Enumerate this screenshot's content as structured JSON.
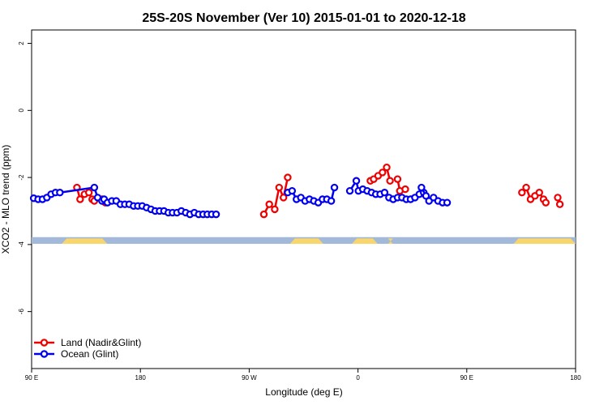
{
  "chart_data": {
    "type": "line",
    "title": "25S-20S November (Ver 10)   2015-01-01 to 2020-12-18",
    "xlabel": "Longitude (deg E)",
    "ylabel": "XCO2 - MLO trend (ppm)",
    "xlim": [
      90,
      450
    ],
    "ylim": [
      -7.7,
      2.4
    ],
    "x_ticks": [
      {
        "value": 90,
        "label": "90 E"
      },
      {
        "value": 162,
        "label": "180"
      },
      {
        "value": 234,
        "label": "90 W"
      },
      {
        "value": 306,
        "label": "0"
      },
      {
        "value": 378,
        "label": "90 E"
      },
      {
        "value": 450,
        "label": "180"
      }
    ],
    "y_ticks": [
      {
        "value": 2,
        "label": "2"
      },
      {
        "value": 0,
        "label": "0"
      },
      {
        "value": -2,
        "label": "-2"
      },
      {
        "value": -4,
        "label": "-4"
      },
      {
        "value": -6,
        "label": "-6"
      }
    ],
    "grid": false,
    "legend_position": "bottom-left",
    "land_mask": {
      "y_range": [
        -3.98,
        -3.78
      ],
      "ocean_color": "#a2b9d9",
      "land_color": "#f8d66b",
      "land_segments": [
        [
          110,
          140
        ],
        [
          261,
          283
        ],
        [
          302,
          319
        ],
        [
          326,
          329
        ],
        [
          409,
          455
        ]
      ]
    },
    "series": [
      {
        "name": "Land (Nadir&Glint)",
        "color": "#ee0000",
        "segments": [
          [
            [
              120.0,
              -2.3
            ],
            [
              122.1,
              -2.65
            ],
            [
              125.0,
              -2.5
            ],
            [
              127.9,
              -2.45
            ],
            [
              130.1,
              -2.65
            ],
            [
              131.5,
              -2.7
            ]
          ],
          [
            [
              136.6,
              -2.65
            ],
            [
              138.8,
              -2.75
            ]
          ],
          [
            [
              243.7,
              -3.1
            ],
            [
              247.3,
              -2.8
            ],
            [
              250.9,
              -2.95
            ],
            [
              253.8,
              -2.3
            ],
            [
              256.7,
              -2.6
            ],
            [
              259.5,
              -2.0
            ]
          ],
          [
            [
              314.2,
              -2.1
            ],
            [
              316.4,
              -2.05
            ],
            [
              319.3,
              -1.95
            ],
            [
              322.2,
              -1.85
            ],
            [
              325.0,
              -1.7
            ],
            [
              327.2,
              -2.1
            ]
          ],
          [
            [
              332.2,
              -2.05
            ],
            [
              333.7,
              -2.4
            ]
          ],
          [
            [
              337.3,
              -2.35
            ]
          ],
          [
            [
              414.5,
              -2.45
            ],
            [
              417.3,
              -2.3
            ],
            [
              420.2,
              -2.65
            ],
            [
              423.1,
              -2.55
            ],
            [
              426.0,
              -2.45
            ],
            [
              428.8,
              -2.65
            ],
            [
              430.3,
              -2.75
            ]
          ],
          [
            [
              438.2,
              -2.6
            ],
            [
              439.6,
              -2.8
            ]
          ]
        ]
      },
      {
        "name": "Ocean (Glint)",
        "color": "#0000ee",
        "segments": [
          [
            [
              91.4,
              -2.62
            ],
            [
              94.3,
              -2.65
            ],
            [
              97.2,
              -2.65
            ],
            [
              100.1,
              -2.6
            ],
            [
              102.9,
              -2.5
            ],
            [
              105.8,
              -2.45
            ],
            [
              108.7,
              -2.45
            ],
            [
              131.5,
              -2.3
            ],
            [
              133.7,
              -2.6
            ],
            [
              136.6,
              -2.7
            ],
            [
              138.0,
              -2.65
            ],
            [
              140.2,
              -2.75
            ],
            [
              143.1,
              -2.7
            ],
            [
              146.0,
              -2.7
            ],
            [
              148.8,
              -2.8
            ],
            [
              151.7,
              -2.8
            ],
            [
              154.6,
              -2.8
            ],
            [
              157.5,
              -2.85
            ],
            [
              160.3,
              -2.85
            ],
            [
              163.2,
              -2.85
            ],
            [
              166.1,
              -2.9
            ],
            [
              169.0,
              -2.95
            ],
            [
              171.8,
              -3.0
            ],
            [
              174.7,
              -3.0
            ],
            [
              177.6,
              -3.0
            ],
            [
              180.5,
              -3.05
            ],
            [
              183.3,
              -3.05
            ],
            [
              186.2,
              -3.05
            ],
            [
              189.1,
              -3.0
            ],
            [
              192.0,
              -3.05
            ],
            [
              194.8,
              -3.1
            ],
            [
              197.7,
              -3.05
            ],
            [
              200.6,
              -3.1
            ],
            [
              203.5,
              -3.1
            ],
            [
              206.3,
              -3.1
            ],
            [
              209.2,
              -3.1
            ],
            [
              212.1,
              -3.1
            ]
          ],
          [
            [
              259.5,
              -2.45
            ],
            [
              262.4,
              -2.4
            ],
            [
              265.3,
              -2.65
            ],
            [
              268.2,
              -2.6
            ],
            [
              271.0,
              -2.7
            ],
            [
              273.9,
              -2.65
            ],
            [
              276.8,
              -2.7
            ],
            [
              279.7,
              -2.75
            ],
            [
              282.5,
              -2.65
            ],
            [
              285.4,
              -2.65
            ],
            [
              288.3,
              -2.7
            ],
            [
              290.4,
              -2.3
            ]
          ],
          [
            [
              300.6,
              -2.4
            ],
            [
              304.9,
              -2.1
            ],
            [
              306.3,
              -2.4
            ],
            [
              309.2,
              -2.35
            ],
            [
              312.1,
              -2.4
            ],
            [
              315.0,
              -2.45
            ],
            [
              317.8,
              -2.5
            ],
            [
              320.7,
              -2.5
            ],
            [
              323.6,
              -2.45
            ],
            [
              326.5,
              -2.6
            ],
            [
              329.3,
              -2.65
            ],
            [
              332.2,
              -2.6
            ],
            [
              335.1,
              -2.6
            ],
            [
              338.0,
              -2.65
            ],
            [
              340.8,
              -2.65
            ],
            [
              343.7,
              -2.6
            ],
            [
              346.6,
              -2.5
            ],
            [
              349.5,
              -2.45
            ]
          ],
          [
            [
              348.0,
              -2.3
            ],
            [
              351.0,
              -2.55
            ],
            [
              353.0,
              -2.7
            ],
            [
              356.0,
              -2.6
            ],
            [
              359.0,
              -2.7
            ],
            [
              362.0,
              -2.75
            ],
            [
              365.0,
              -2.75
            ]
          ]
        ]
      }
    ]
  }
}
